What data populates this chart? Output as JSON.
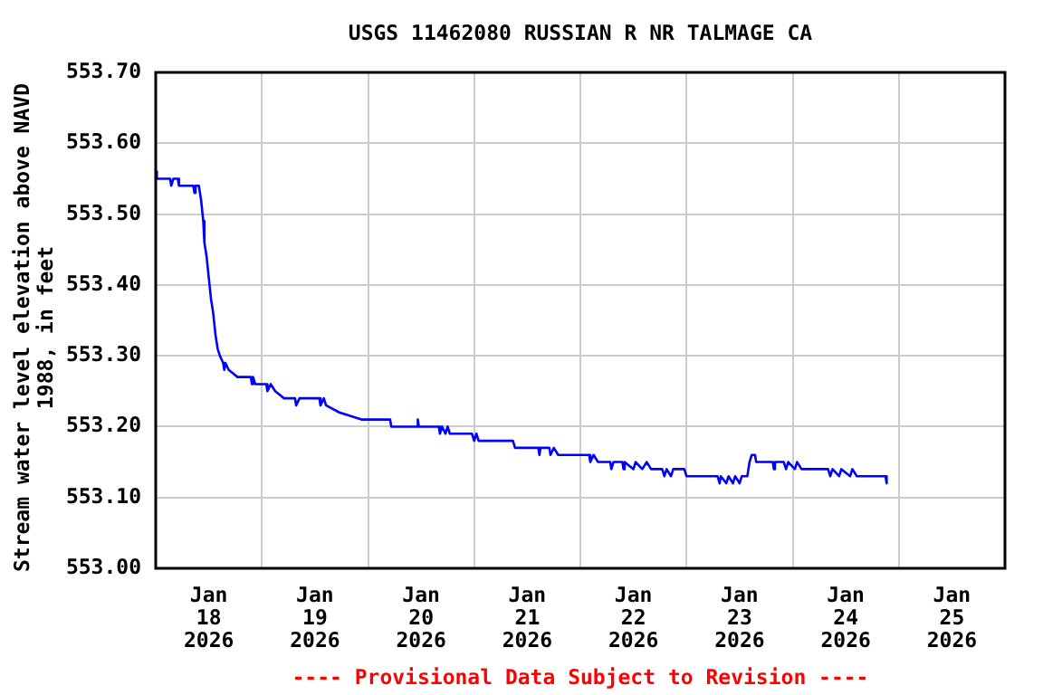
{
  "chart_data": {
    "type": "line",
    "title": "USGS 11462080 RUSSIAN R NR TALMAGE CA",
    "ylabel": "Stream water level elevation above NAVD 1988, in feet",
    "annotations": [
      "---- Provisional Data Subject to Revision ----"
    ],
    "x": [
      "2026-01-18T00:00",
      "2026-01-18T00:15",
      "2026-01-18T03:15",
      "2026-01-18T03:30",
      "2026-01-18T04:00",
      "2026-01-18T05:00",
      "2026-01-18T05:15",
      "2026-01-18T08:30",
      "2026-01-18T08:45",
      "2026-01-18T09:00",
      "2026-01-18T09:45",
      "2026-01-18T10:15",
      "2026-01-18T10:45",
      "2026-01-18T11:00",
      "2026-01-18T11:30",
      "2026-01-18T12:00",
      "2026-01-18T12:30",
      "2026-01-18T13:00",
      "2026-01-18T13:30",
      "2026-01-18T14:00",
      "2026-01-18T14:30",
      "2026-01-18T15:15",
      "2026-01-18T15:30",
      "2026-01-18T15:45",
      "2026-01-18T16:30",
      "2026-01-18T18:30",
      "2026-01-18T21:30",
      "2026-01-18T21:45",
      "2026-01-18T22:00",
      "2026-01-18T22:30",
      "2026-01-19T01:00",
      "2026-01-19T01:15",
      "2026-01-19T02:00",
      "2026-01-19T03:00",
      "2026-01-19T05:00",
      "2026-01-19T07:30",
      "2026-01-19T07:45",
      "2026-01-19T08:30",
      "2026-01-19T13:00",
      "2026-01-19T13:15",
      "2026-01-19T14:00",
      "2026-01-19T14:30",
      "2026-01-19T17:30",
      "2026-01-19T22:30",
      "2026-01-20T05:00",
      "2026-01-20T05:15",
      "2026-01-20T11:00",
      "2026-01-20T11:15",
      "2026-01-20T11:30",
      "2026-01-20T16:00",
      "2026-01-20T16:15",
      "2026-01-20T16:45",
      "2026-01-20T17:30",
      "2026-01-20T18:00",
      "2026-01-20T18:30",
      "2026-01-20T23:30",
      "2026-01-21T00:00",
      "2026-01-21T00:30",
      "2026-01-21T01:00",
      "2026-01-21T08:45",
      "2026-01-21T09:15",
      "2026-01-21T14:30",
      "2026-01-21T14:45",
      "2026-01-21T15:00",
      "2026-01-21T17:00",
      "2026-01-21T17:15",
      "2026-01-21T18:00",
      "2026-01-21T19:00",
      "2026-01-22T02:00",
      "2026-01-22T02:15",
      "2026-01-22T03:00",
      "2026-01-22T04:00",
      "2026-01-22T06:45",
      "2026-01-22T07:00",
      "2026-01-22T07:30",
      "2026-01-22T09:30",
      "2026-01-22T09:45",
      "2026-01-22T10:00",
      "2026-01-22T12:00",
      "2026-01-22T12:30",
      "2026-01-22T14:00",
      "2026-01-22T15:00",
      "2026-01-22T16:00",
      "2026-01-22T18:30",
      "2026-01-22T19:00",
      "2026-01-22T19:30",
      "2026-01-22T20:30",
      "2026-01-22T21:00",
      "2026-01-22T23:30",
      "2026-01-23T00:00",
      "2026-01-23T07:00",
      "2026-01-23T07:30",
      "2026-01-23T07:45",
      "2026-01-23T09:00",
      "2026-01-23T09:30",
      "2026-01-23T10:30",
      "2026-01-23T11:00",
      "2026-01-23T12:00",
      "2026-01-23T12:30",
      "2026-01-23T13:45",
      "2026-01-23T14:15",
      "2026-01-23T14:45",
      "2026-01-23T15:30",
      "2026-01-23T15:45",
      "2026-01-23T19:30",
      "2026-01-23T19:45",
      "2026-01-23T20:00",
      "2026-01-23T22:00",
      "2026-01-23T22:30",
      "2026-01-23T23:00",
      "2026-01-24T00:30",
      "2026-01-24T01:00",
      "2026-01-24T02:00",
      "2026-01-24T08:00",
      "2026-01-24T08:30",
      "2026-01-24T09:00",
      "2026-01-24T10:30",
      "2026-01-24T11:00",
      "2026-01-24T13:00",
      "2026-01-24T13:30",
      "2026-01-24T14:30",
      "2026-01-24T21:00",
      "2026-01-24T21:15"
    ],
    "series": [
      {
        "color": "#0000ff",
        "values": [
          553.56,
          553.55,
          553.55,
          553.54,
          553.55,
          553.55,
          553.54,
          553.54,
          553.53,
          553.54,
          553.54,
          553.52,
          553.49,
          553.46,
          553.44,
          553.41,
          553.38,
          553.36,
          553.33,
          553.31,
          553.3,
          553.29,
          553.28,
          553.29,
          553.28,
          553.27,
          553.27,
          553.26,
          553.27,
          553.26,
          553.26,
          553.25,
          553.26,
          553.25,
          553.24,
          553.24,
          553.23,
          553.24,
          553.24,
          553.23,
          553.24,
          553.23,
          553.22,
          553.21,
          553.21,
          553.2,
          553.2,
          553.21,
          553.2,
          553.2,
          553.19,
          553.2,
          553.19,
          553.2,
          553.19,
          553.19,
          553.18,
          553.19,
          553.18,
          553.18,
          553.17,
          553.17,
          553.16,
          553.17,
          553.17,
          553.16,
          553.17,
          553.16,
          553.16,
          553.15,
          553.16,
          553.15,
          553.15,
          553.14,
          553.15,
          553.15,
          553.14,
          553.15,
          553.14,
          553.15,
          553.14,
          553.15,
          553.14,
          553.14,
          553.13,
          553.14,
          553.13,
          553.14,
          553.14,
          553.13,
          553.13,
          553.12,
          553.13,
          553.12,
          553.13,
          553.12,
          553.13,
          553.12,
          553.13,
          553.13,
          553.15,
          553.16,
          553.16,
          553.15,
          553.15,
          553.14,
          553.15,
          553.15,
          553.14,
          553.15,
          553.14,
          553.15,
          553.14,
          553.14,
          553.13,
          553.14,
          553.13,
          553.14,
          553.13,
          553.14,
          553.13,
          553.13,
          553.12
        ]
      }
    ],
    "xlim": [
      "2026-01-18T00:00",
      "2026-01-26T00:00"
    ],
    "xticks": [
      {
        "value": "2026-01-18T00:00",
        "label": null
      },
      {
        "value": "2026-01-18T12:00",
        "label": "Jan 18 2026"
      },
      {
        "value": "2026-01-19T00:00",
        "label": null
      },
      {
        "value": "2026-01-19T12:00",
        "label": "Jan 19 2026"
      },
      {
        "value": "2026-01-20T00:00",
        "label": null
      },
      {
        "value": "2026-01-20T12:00",
        "label": "Jan 20 2026"
      },
      {
        "value": "2026-01-21T00:00",
        "label": null
      },
      {
        "value": "2026-01-21T12:00",
        "label": "Jan 21 2026"
      },
      {
        "value": "2026-01-22T00:00",
        "label": null
      },
      {
        "value": "2026-01-22T12:00",
        "label": "Jan 22 2026"
      },
      {
        "value": "2026-01-23T00:00",
        "label": null
      },
      {
        "value": "2026-01-23T12:00",
        "label": "Jan 23 2026"
      },
      {
        "value": "2026-01-24T00:00",
        "label": null
      },
      {
        "value": "2026-01-24T12:00",
        "label": "Jan 24 2026"
      },
      {
        "value": "2026-01-25T00:00",
        "label": null
      },
      {
        "value": "2026-01-25T12:00",
        "label": "Jan 25 2026"
      },
      {
        "value": "2026-01-26T00:00",
        "label": null
      }
    ],
    "ylim": [
      553.0,
      553.7
    ],
    "yticks": [
      {
        "value": 553.0,
        "label": "553.00"
      },
      {
        "value": 553.1,
        "label": "553.10"
      },
      {
        "value": 553.2,
        "label": "553.20"
      },
      {
        "value": 553.3,
        "label": "553.30"
      },
      {
        "value": 553.4,
        "label": "553.40"
      },
      {
        "value": 553.5,
        "label": "553.50"
      },
      {
        "value": 553.6,
        "label": "553.60"
      },
      {
        "value": 553.7,
        "label": "553.70"
      }
    ],
    "grid": true,
    "marker": "none"
  }
}
